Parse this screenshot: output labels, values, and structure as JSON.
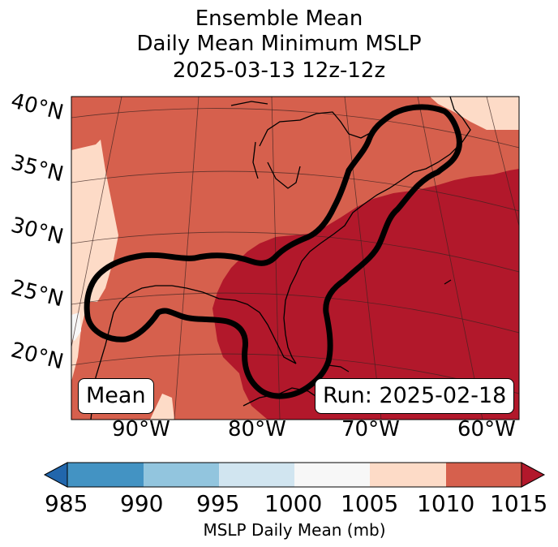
{
  "title": {
    "line1": "Ensemble Mean",
    "line2": "Daily Mean Minimum MSLP",
    "line3": "2025-03-13 12z-12z"
  },
  "map": {
    "latitude_labels": [
      "40°N",
      "35°N",
      "30°N",
      "25°N",
      "20°N"
    ],
    "longitude_labels": [
      "90°W",
      "80°W",
      "70°W",
      "60°W"
    ],
    "legend_box": "Mean",
    "run_box": "Run: 2025-02-18",
    "colors": {
      "ocean_deep": "#b2182b",
      "mid": "#d6604d",
      "light": "#fddbc7",
      "white": "#f7f7f7",
      "contour": "#000000",
      "coast": "#000000"
    }
  },
  "colorbar": {
    "ticks": [
      "985",
      "990",
      "995",
      "1000",
      "1005",
      "1010",
      "1015"
    ],
    "label": "MSLP Daily Mean (mb)",
    "colors": [
      "#2166ac",
      "#4393c3",
      "#92c5de",
      "#d1e5f0",
      "#f7f7f7",
      "#fddbc7",
      "#d6604d",
      "#b2182b"
    ]
  }
}
